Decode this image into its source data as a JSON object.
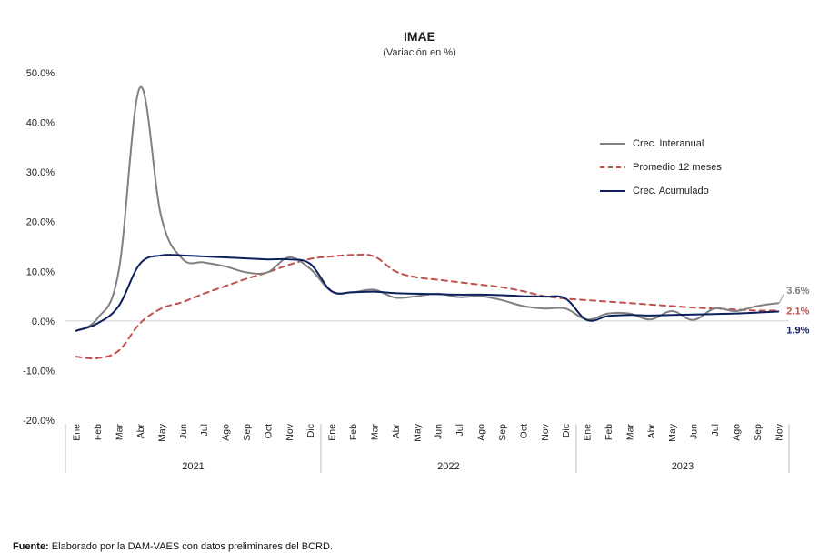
{
  "chart_data": {
    "type": "line",
    "title": "IMAE",
    "subtitle": "(Variación en %)",
    "ylim": [
      -20,
      50
    ],
    "y_ticks": [
      "-20.0%",
      "-10.0%",
      "0.0%",
      "10.0%",
      "20.0%",
      "30.0%",
      "40.0%",
      "50.0%"
    ],
    "y_tick_values": [
      -20,
      -10,
      0,
      10,
      20,
      30,
      40,
      50
    ],
    "grid": false,
    "legend_position": "right",
    "categories": [
      "Ene",
      "Feb",
      "Mar",
      "Abr",
      "May",
      "Jun",
      "Jul",
      "Ago",
      "Sep",
      "Oct",
      "Nov",
      "Dic",
      "Ene",
      "Feb",
      "Mar",
      "Abr",
      "May",
      "Jun",
      "Jul",
      "Ago",
      "Sep",
      "Oct",
      "Nov",
      "Dic",
      "Ene",
      "Feb",
      "Mar",
      "Abr",
      "May",
      "Jun",
      "Jul",
      "Ago",
      "Sep",
      "Nov"
    ],
    "year_groups": [
      {
        "label": "2021",
        "count": 12
      },
      {
        "label": "2022",
        "count": 12
      },
      {
        "label": "2023",
        "count": 10
      }
    ],
    "series": [
      {
        "name": "Crec. Interanual",
        "color": "#808080",
        "dash": "solid",
        "values": [
          -2.0,
          0.5,
          10.0,
          47.0,
          21.0,
          12.5,
          11.8,
          11.0,
          9.8,
          9.8,
          12.8,
          10.5,
          6.0,
          5.8,
          6.3,
          4.7,
          5.0,
          5.5,
          4.8,
          5.0,
          4.2,
          3.0,
          2.5,
          2.5,
          0.3,
          1.5,
          1.5,
          0.3,
          2.0,
          0.2,
          2.5,
          2.0,
          3.0,
          3.6
        ]
      },
      {
        "name": "Promedio 12 meses",
        "color": "#c0504d",
        "dash": "dashed",
        "values": [
          -7.2,
          -7.5,
          -6.0,
          -0.5,
          2.5,
          3.8,
          5.5,
          7.0,
          8.5,
          9.8,
          11.3,
          12.5,
          13.0,
          13.3,
          13.0,
          10.0,
          8.8,
          8.3,
          7.8,
          7.3,
          6.8,
          6.0,
          5.0,
          4.5,
          4.2,
          3.9,
          3.6,
          3.3,
          3.0,
          2.7,
          2.5,
          2.3,
          2.1,
          2.1
        ]
      },
      {
        "name": "Crec. Acumulado",
        "color": "#0d1f5c",
        "dash": "solid",
        "values": [
          -2.0,
          -0.5,
          3.0,
          11.5,
          13.2,
          13.2,
          13.0,
          12.8,
          12.6,
          12.4,
          12.4,
          11.5,
          6.0,
          5.8,
          5.9,
          5.6,
          5.5,
          5.4,
          5.3,
          5.3,
          5.2,
          5.0,
          4.9,
          4.5,
          0.2,
          1.0,
          1.2,
          1.1,
          1.2,
          1.3,
          1.4,
          1.5,
          1.7,
          1.9
        ]
      }
    ],
    "end_labels": [
      {
        "series": "Crec. Interanual",
        "text": "3.6%",
        "color": "#808080"
      },
      {
        "series": "Promedio 12 meses",
        "text": "2.1%",
        "color": "#c0504d"
      },
      {
        "series": "Crec. Acumulado",
        "text": "1.9%",
        "color": "#0d1f5c"
      }
    ]
  },
  "source": {
    "prefix": "Fuente:",
    "text": " Elaborado por la DAM-VAES con datos preliminares del BCRD."
  }
}
